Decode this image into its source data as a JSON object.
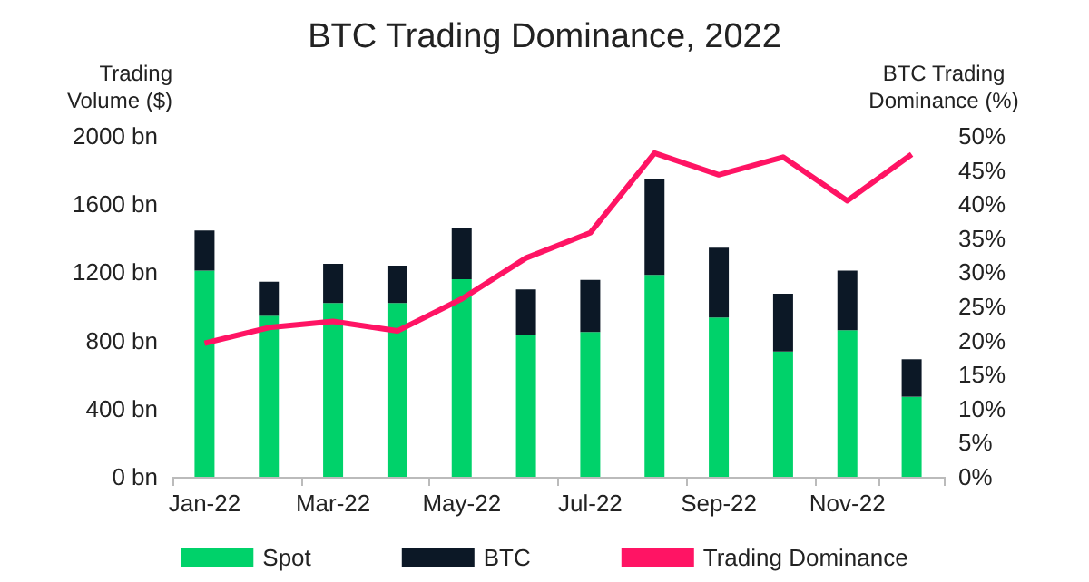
{
  "chart_data": {
    "type": "bar",
    "title": "BTC Trading Dominance, 2022",
    "ylabel": "Trading\nVolume ($)",
    "y2label": "BTC Trading\nDominance (%)",
    "categories": [
      "Jan-22",
      null,
      "Mar-22",
      null,
      "May-22",
      null,
      "Jul-22",
      null,
      "Sep-22",
      null,
      "Nov-22",
      null
    ],
    "stacked": true,
    "series": [
      {
        "name": "Spot",
        "color": "#00d26a",
        "values": [
          1210,
          945,
          1020,
          1020,
          1160,
          835,
          850,
          1185,
          935,
          735,
          860,
          470
        ]
      },
      {
        "name": "BTC",
        "color": "#0c1826",
        "values": [
          235,
          200,
          230,
          220,
          300,
          265,
          305,
          560,
          410,
          340,
          350,
          220
        ]
      },
      {
        "name": "Trading Dominance",
        "type": "line",
        "axis": "y2",
        "color": "#ff1464",
        "values": [
          19.6,
          21.9,
          22.8,
          21.4,
          26.1,
          32.1,
          35.8,
          47.5,
          44.3,
          46.9,
          40.5,
          47.3
        ]
      }
    ],
    "ylim": [
      0,
      2000
    ],
    "yticks": [
      {
        "value": 0,
        "label": "0 bn"
      },
      {
        "value": 400,
        "label": "400 bn"
      },
      {
        "value": 800,
        "label": "800 bn"
      },
      {
        "value": 1200,
        "label": "1200 bn"
      },
      {
        "value": 1600,
        "label": "1600 bn"
      },
      {
        "value": 2000,
        "label": "2000 bn"
      }
    ],
    "y2lim": [
      0,
      50
    ],
    "y2ticks": [
      {
        "value": 0,
        "label": "0%"
      },
      {
        "value": 5,
        "label": "5%"
      },
      {
        "value": 10,
        "label": "10%"
      },
      {
        "value": 15,
        "label": "15%"
      },
      {
        "value": 20,
        "label": "20%"
      },
      {
        "value": 25,
        "label": "25%"
      },
      {
        "value": 30,
        "label": "30%"
      },
      {
        "value": 35,
        "label": "35%"
      },
      {
        "value": 40,
        "label": "40%"
      },
      {
        "value": 45,
        "label": "45%"
      },
      {
        "value": 50,
        "label": "50%"
      }
    ],
    "grid": false,
    "legend": "bottom",
    "marker": "none",
    "line_style": "solid"
  }
}
